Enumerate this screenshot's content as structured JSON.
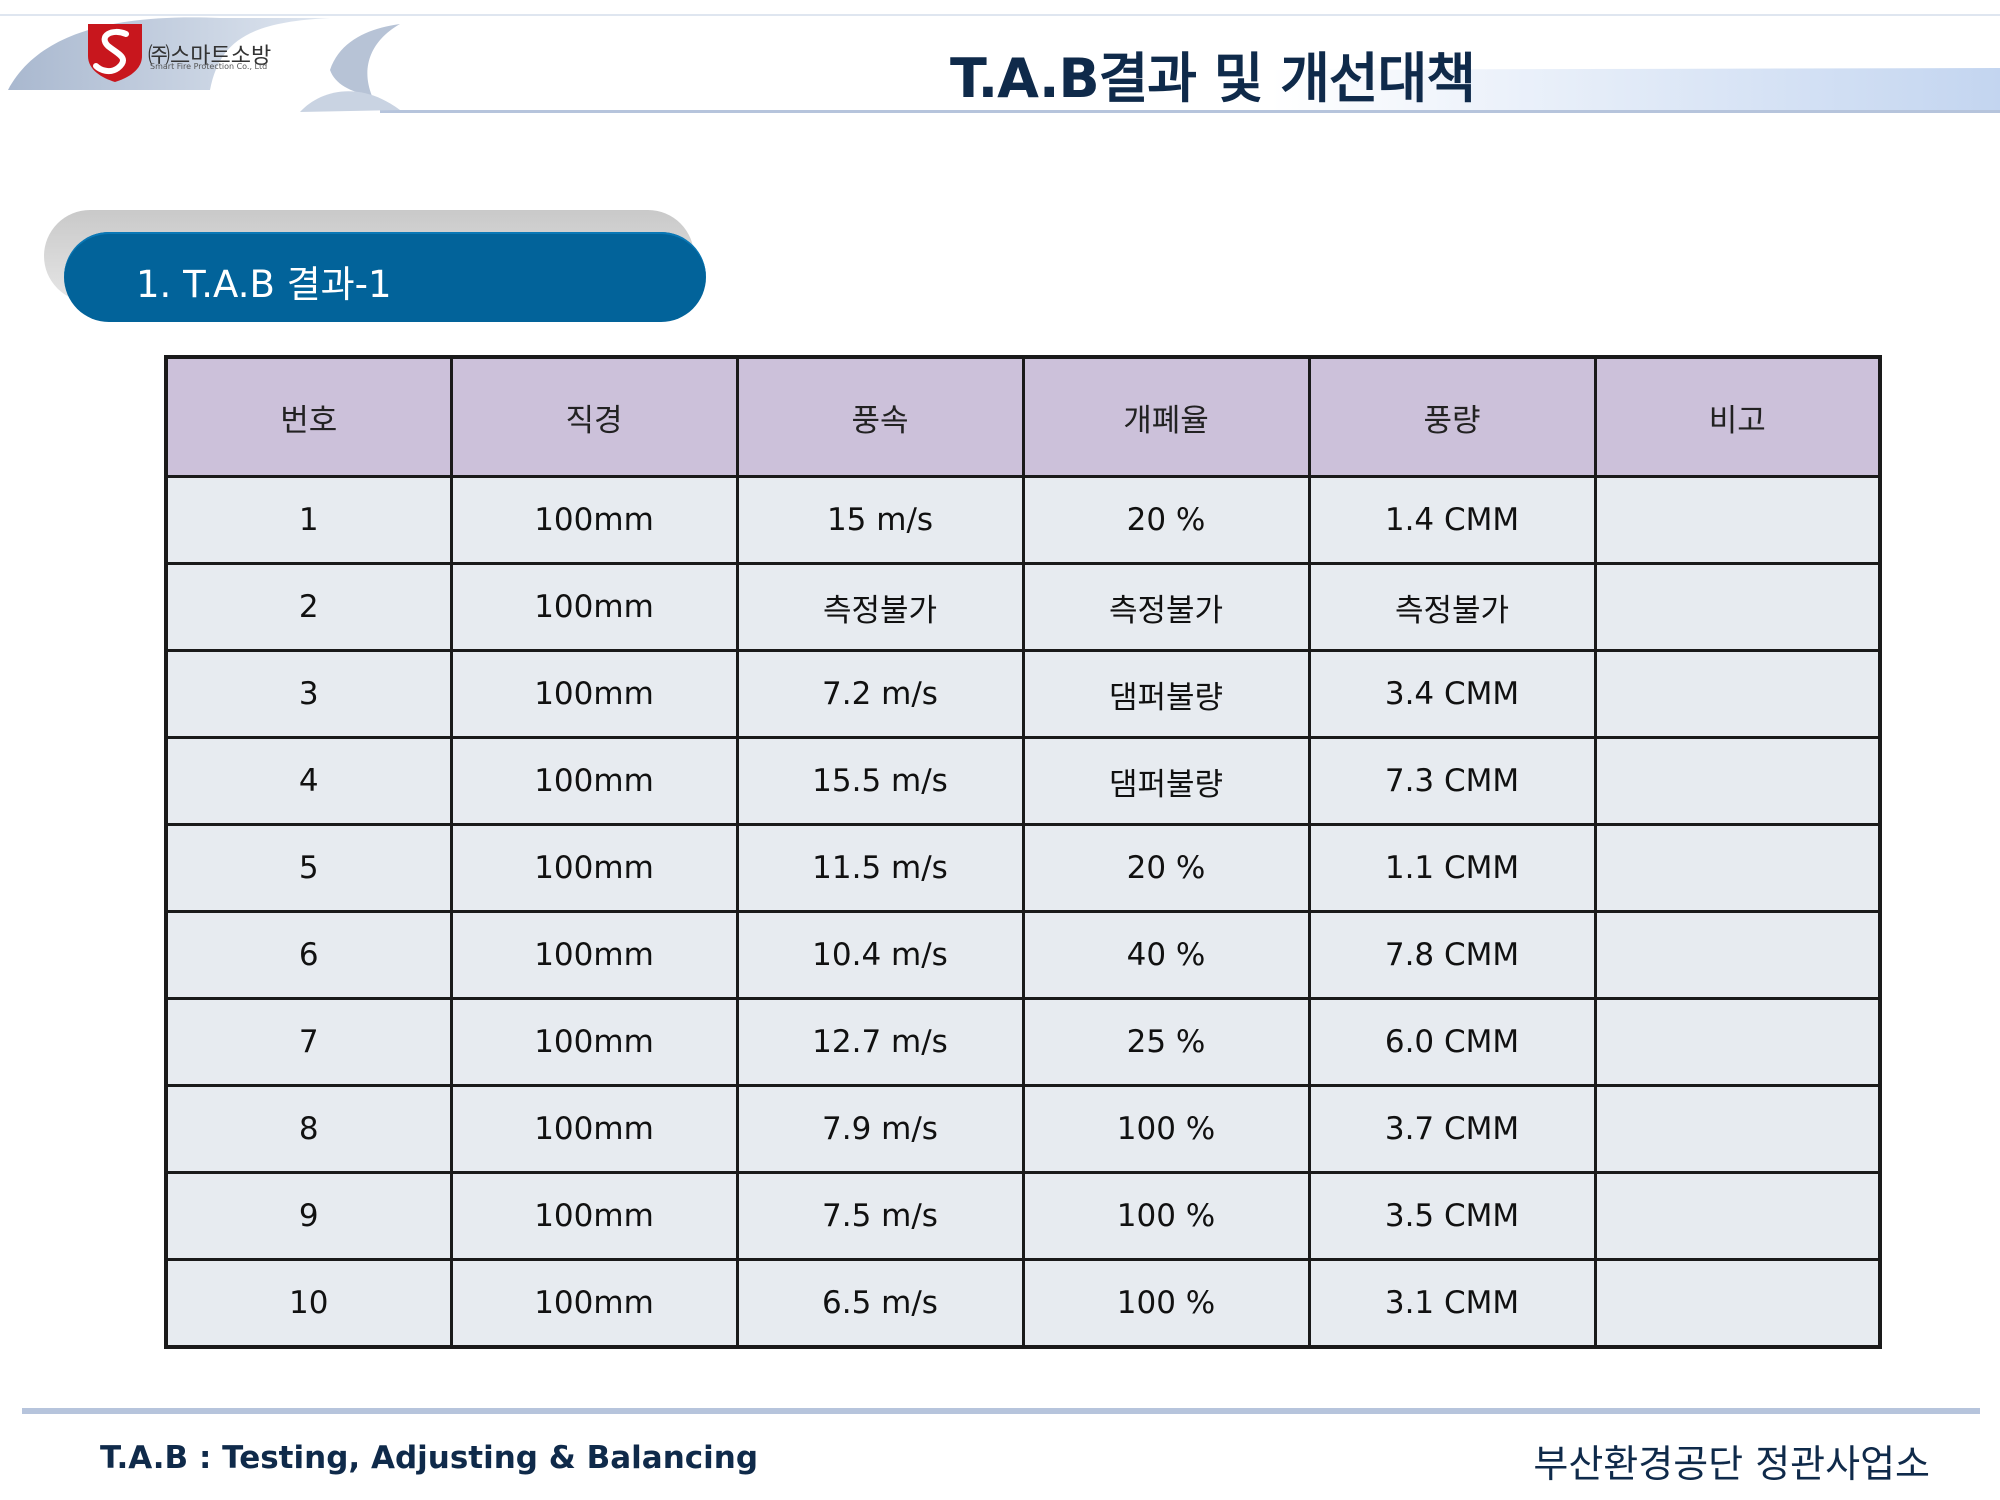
{
  "header": {
    "company_name": "㈜스마트소방",
    "company_sub": "Smart Fire Protection Co., Ltd",
    "title": "T.A.B결과 및 개선대책"
  },
  "section": {
    "title": "1. T.A.B 결과-1"
  },
  "table": {
    "headers": [
      "번호",
      "직경",
      "풍속",
      "개폐율",
      "풍량",
      "비고"
    ],
    "rows": [
      [
        "1",
        "100mm",
        "15 m/s",
        "20 %",
        "1.4 CMM",
        ""
      ],
      [
        "2",
        "100mm",
        "측정불가",
        "측정불가",
        "측정불가",
        ""
      ],
      [
        "3",
        "100mm",
        "7.2 m/s",
        "댐퍼불량",
        "3.4 CMM",
        ""
      ],
      [
        "4",
        "100mm",
        "15.5 m/s",
        "댐퍼불량",
        "7.3 CMM",
        ""
      ],
      [
        "5",
        "100mm",
        "11.5 m/s",
        "20 %",
        "1.1 CMM",
        ""
      ],
      [
        "6",
        "100mm",
        "10.4 m/s",
        "40 %",
        "7.8 CMM",
        ""
      ],
      [
        "7",
        "100mm",
        "12.7 m/s",
        "25 %",
        "6.0 CMM",
        ""
      ],
      [
        "8",
        "100mm",
        "7.9 m/s",
        "100 %",
        "3.7 CMM",
        ""
      ],
      [
        "9",
        "100mm",
        "7.5 m/s",
        "100 %",
        "3.5 CMM",
        ""
      ],
      [
        "10",
        "100mm",
        "6.5 m/s",
        "100 %",
        "3.1 CMM",
        ""
      ]
    ]
  },
  "footer": {
    "left": "T.A.B : Testing, Adjusting & Balancing",
    "right": "부산환경공단 정관사업소"
  },
  "colors": {
    "header_bg": "#ccc1da",
    "cell_bg": "#e7ebf0",
    "section_pill": "#02639a",
    "title_text": "#0f2a4a",
    "logo_red": "#c8161d"
  },
  "icons": {
    "logo": "shield-s-logo-icon"
  }
}
